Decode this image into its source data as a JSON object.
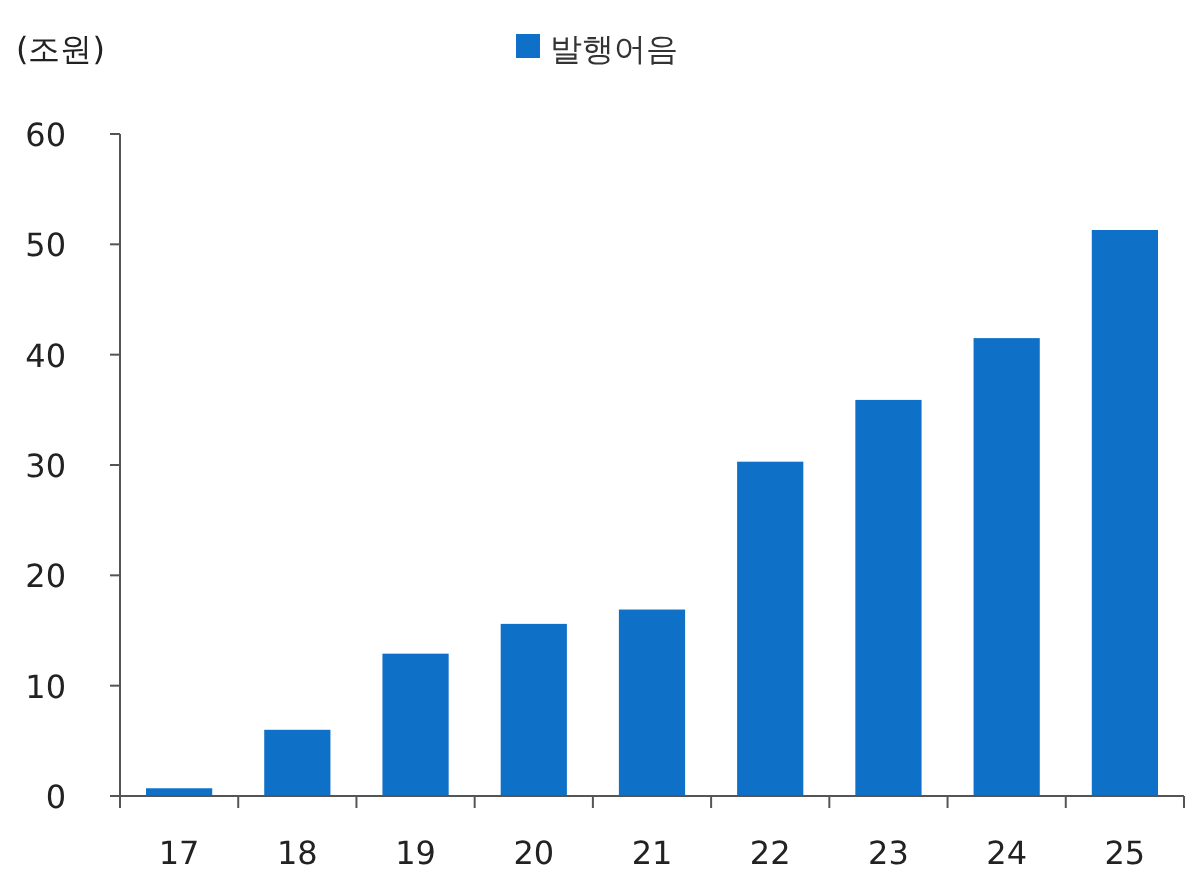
{
  "chart_data": {
    "type": "bar",
    "ylabel": "(조원)",
    "legend": "top",
    "categories": [
      "17",
      "18",
      "19",
      "20",
      "21",
      "22",
      "23",
      "24",
      "25"
    ],
    "series": [
      {
        "name": "발행어음",
        "color": "#0e70c6",
        "values": [
          0.7,
          6.0,
          12.9,
          15.6,
          16.9,
          30.3,
          35.9,
          41.5,
          51.3
        ]
      }
    ],
    "ylim": [
      0,
      60
    ],
    "yticks": [
      0,
      10,
      20,
      30,
      40,
      50,
      60
    ]
  }
}
